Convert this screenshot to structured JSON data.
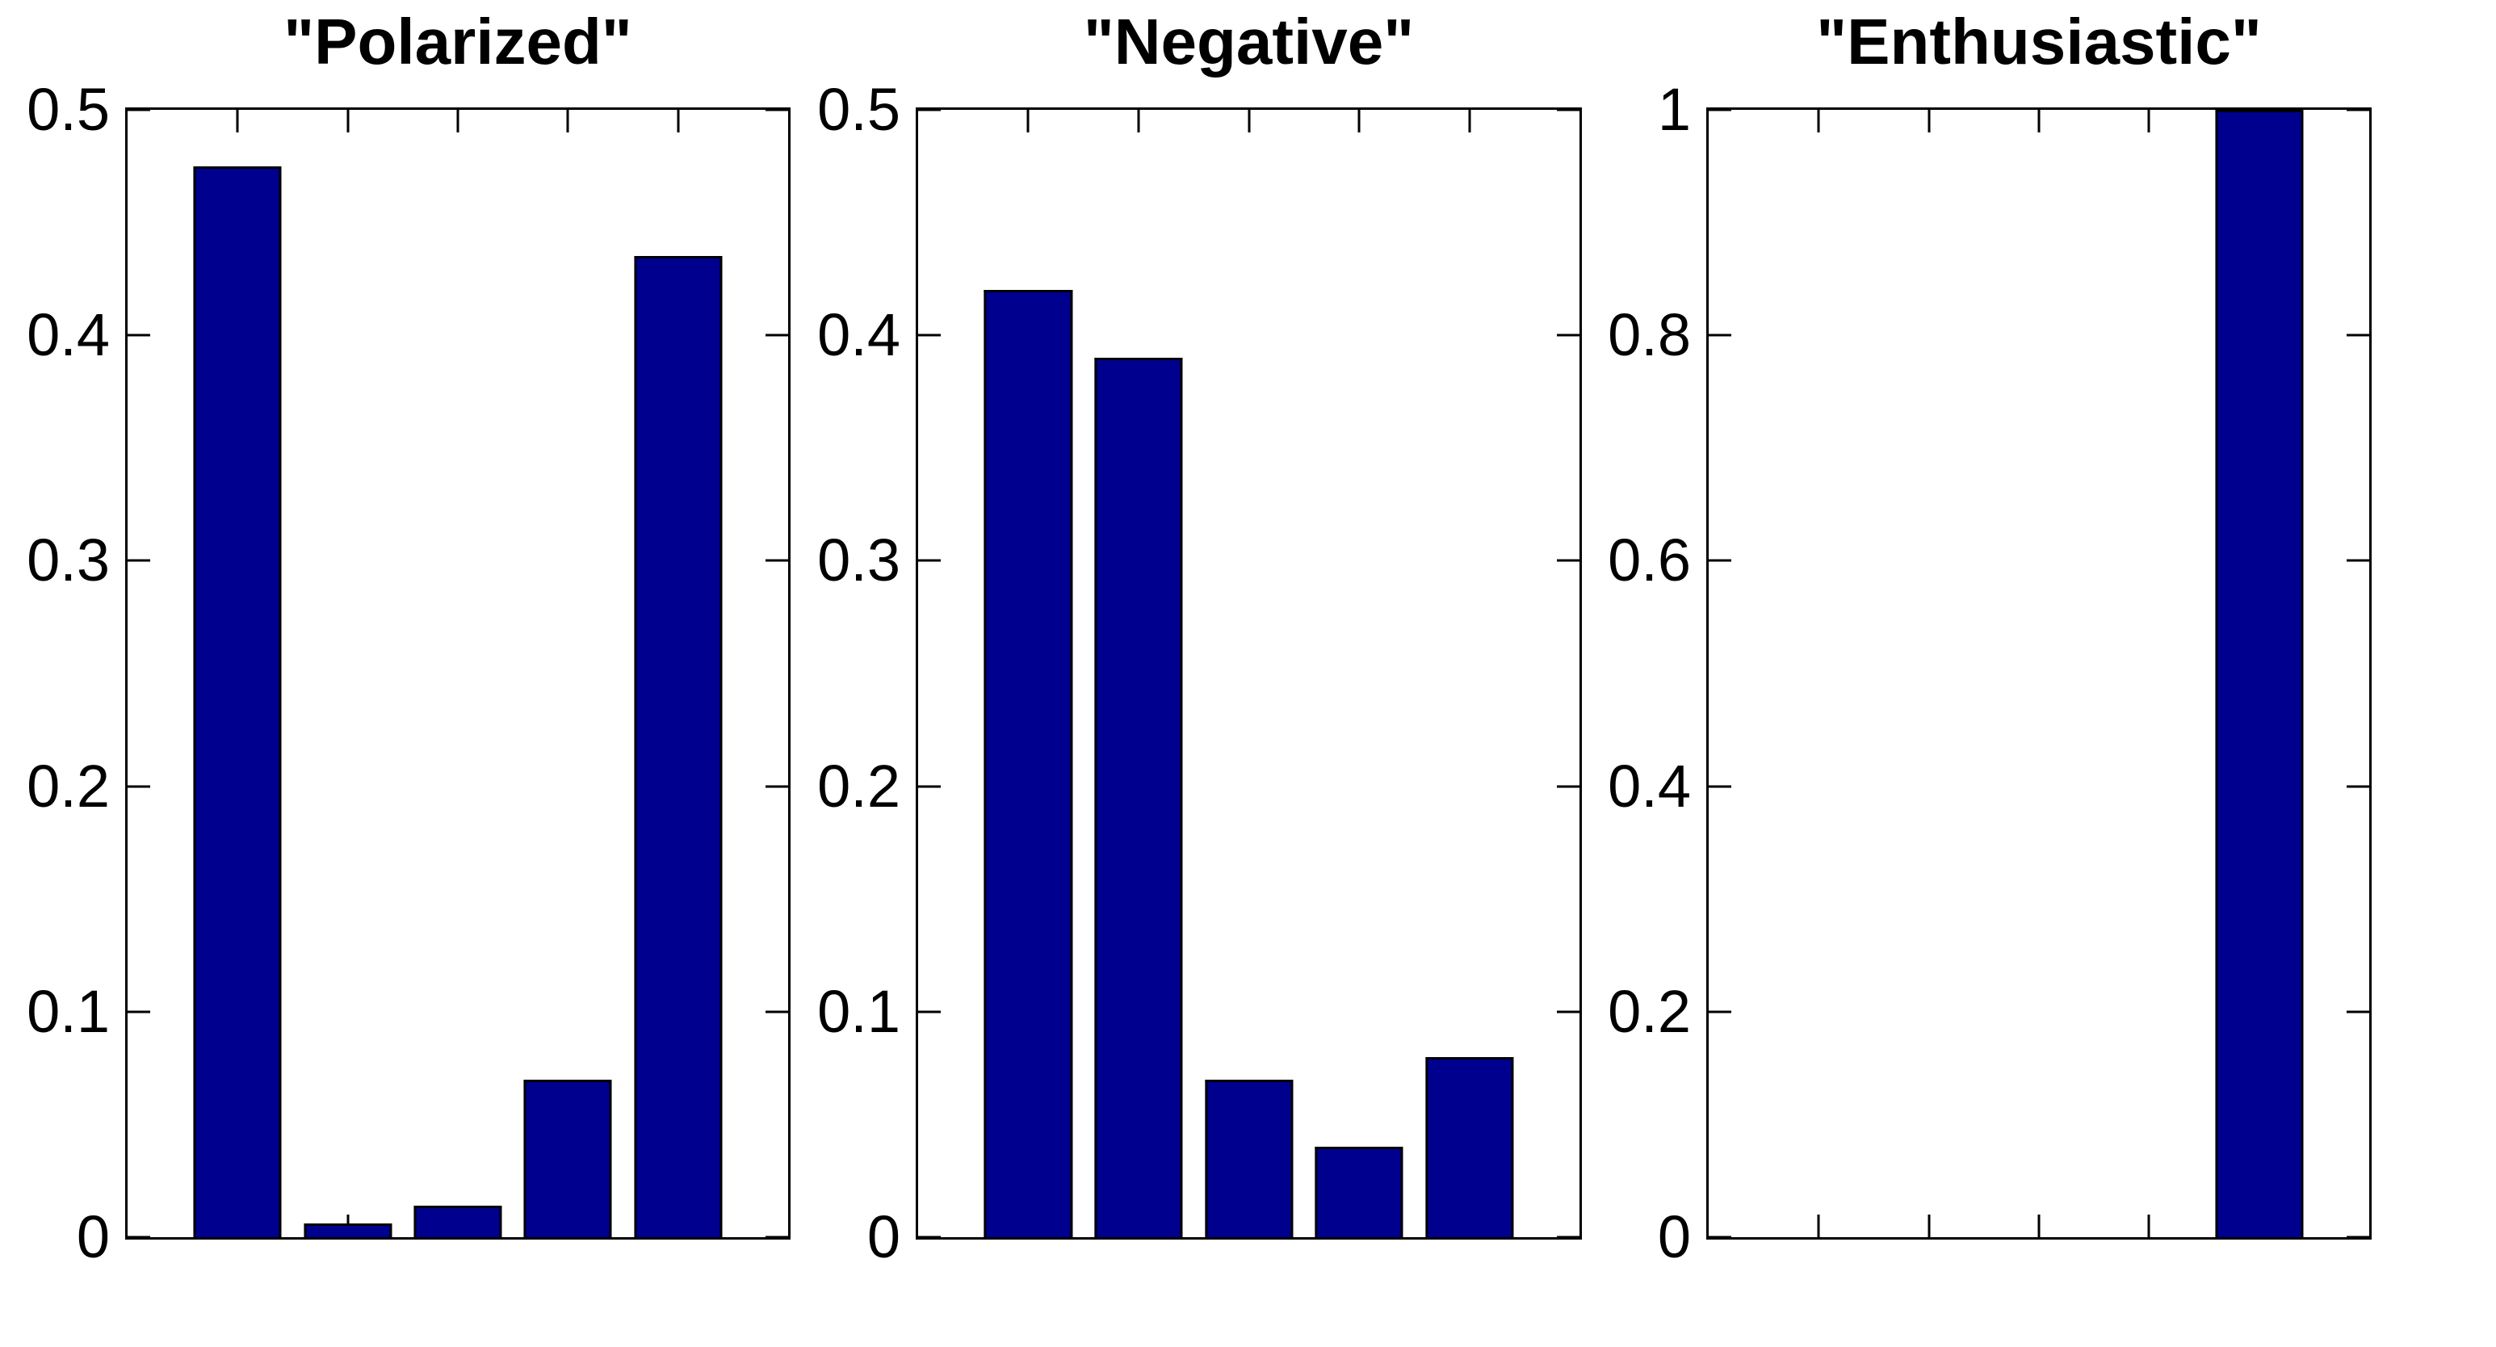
{
  "figure": {
    "background": "#ffffff",
    "axis_color": "#000000"
  },
  "chart_data": [
    {
      "type": "bar",
      "title": "\"Polarized\"",
      "x": [
        1,
        2,
        3,
        4,
        5
      ],
      "values": [
        0.475,
        0.006,
        0.014,
        0.07,
        0.435
      ],
      "xlim": [
        0,
        6
      ],
      "ylim": [
        0,
        0.5
      ],
      "yticks": [
        0,
        0.1,
        0.2,
        0.3,
        0.4,
        0.5
      ],
      "ytick_labels": [
        "0",
        "0.1",
        "0.2",
        "0.3",
        "0.4",
        "0.5"
      ],
      "xticks": [
        1,
        2,
        3,
        4,
        5
      ],
      "xtick_labels": [
        "",
        "",
        "",
        "",
        ""
      ],
      "bar_width": 0.8,
      "bar_color": "#00008F",
      "bar_edge_color": "#000000",
      "grid": false,
      "legend": null
    },
    {
      "type": "bar",
      "title": "\"Negative\"",
      "x": [
        1,
        2,
        3,
        4,
        5
      ],
      "values": [
        0.42,
        0.39,
        0.07,
        0.04,
        0.08
      ],
      "xlim": [
        0,
        6
      ],
      "ylim": [
        0,
        0.5
      ],
      "yticks": [
        0,
        0.1,
        0.2,
        0.3,
        0.4,
        0.5
      ],
      "ytick_labels": [
        "0",
        "0.1",
        "0.2",
        "0.3",
        "0.4",
        "0.5"
      ],
      "xticks": [
        1,
        2,
        3,
        4,
        5
      ],
      "xtick_labels": [
        "",
        "",
        "",
        "",
        ""
      ],
      "bar_width": 0.8,
      "bar_color": "#00008F",
      "bar_edge_color": "#000000",
      "grid": false,
      "legend": null
    },
    {
      "type": "bar",
      "title": "\"Enthusiastic\"",
      "x": [
        1,
        2,
        3,
        4,
        5
      ],
      "values": [
        0,
        0,
        0,
        0,
        1
      ],
      "xlim": [
        0,
        6
      ],
      "ylim": [
        0,
        1
      ],
      "yticks": [
        0,
        0.2,
        0.4,
        0.6,
        0.8,
        1
      ],
      "ytick_labels": [
        "0",
        "0.2",
        "0.4",
        "0.6",
        "0.8",
        "1"
      ],
      "xticks": [
        1,
        2,
        3,
        4,
        5
      ],
      "xtick_labels": [
        "",
        "",
        "",
        "",
        ""
      ],
      "bar_width": 0.8,
      "bar_color": "#00008F",
      "bar_edge_color": "#000000",
      "grid": false,
      "legend": null
    }
  ]
}
